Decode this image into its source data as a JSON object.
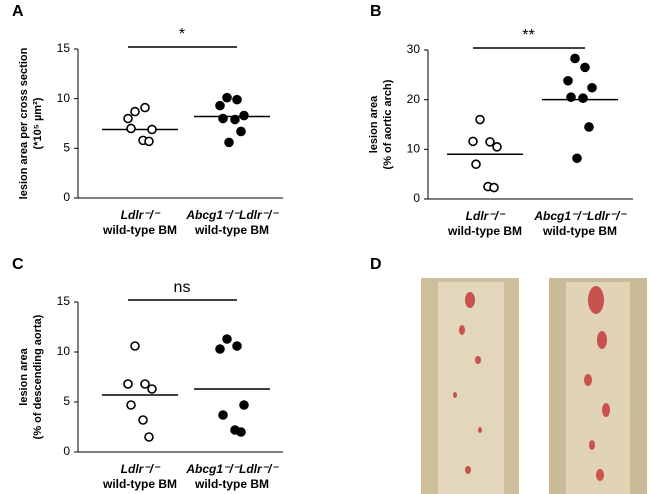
{
  "chart_data": [
    {
      "type": "dot",
      "panel": "A",
      "ylabel": [
        "lesion area per cross section",
        "(*10⁵ µm²)"
      ],
      "ylim": [
        0,
        15
      ],
      "yticks": [
        0,
        5,
        10,
        15
      ],
      "groups": [
        {
          "label": "Ldlr⁻/⁻",
          "sublabel": "wild-type BM",
          "color": "#ffffff",
          "values": [
            8.7,
            9.1,
            8.0,
            6.9,
            7.0,
            5.8,
            5.7
          ],
          "line": 6.9
        },
        {
          "label": "Abcg1⁻/⁻Ldlr⁻/⁻",
          "sublabel": "wild-type BM",
          "color": "#000000",
          "values": [
            10.1,
            9.9,
            9.3,
            8.3,
            8.0,
            7.9,
            6.7,
            5.6
          ],
          "line": 8.2
        }
      ],
      "significance": "*"
    },
    {
      "type": "dot",
      "panel": "B",
      "ylabel": [
        "lesion area",
        "(% of aortic arch)"
      ],
      "ylim": [
        0,
        30
      ],
      "yticks": [
        0,
        10,
        20,
        30
      ],
      "groups": [
        {
          "label": "Ldlr⁻/⁻",
          "sublabel": "wild-type BM",
          "color": "#ffffff",
          "values": [
            16,
            11.5,
            11.6,
            10.5,
            7,
            2.5,
            2.3
          ],
          "line": 9
        },
        {
          "label": "Abcg1⁻/⁻Ldlr⁻/⁻",
          "sublabel": "wild-type BM",
          "color": "#000000",
          "values": [
            28.3,
            26.5,
            23.8,
            22.4,
            20.5,
            20.3,
            14.5,
            8.2
          ],
          "line": 20
        }
      ],
      "significance": "**"
    },
    {
      "type": "dot",
      "panel": "C",
      "ylabel": [
        "lesion area",
        "(% of descending aorta)"
      ],
      "ylim": [
        0,
        15
      ],
      "yticks": [
        0,
        5,
        10,
        15
      ],
      "groups": [
        {
          "label": "Ldlr⁻/⁻",
          "sublabel": "wild-type BM",
          "color": "#ffffff",
          "values": [
            10.6,
            6.8,
            6.8,
            6.3,
            4.7,
            3.2,
            1.5
          ],
          "line": 5.7
        },
        {
          "label": "Abcg1⁻/⁻Ldlr⁻/⁻",
          "sublabel": "wild-type BM",
          "color": "#000000",
          "values": [
            11.3,
            10.6,
            10.3,
            4.7,
            3.7,
            2.2,
            2.0
          ],
          "line": 6.3
        }
      ],
      "significance": "ns"
    },
    {
      "type": "photo",
      "panel": "D"
    }
  ]
}
